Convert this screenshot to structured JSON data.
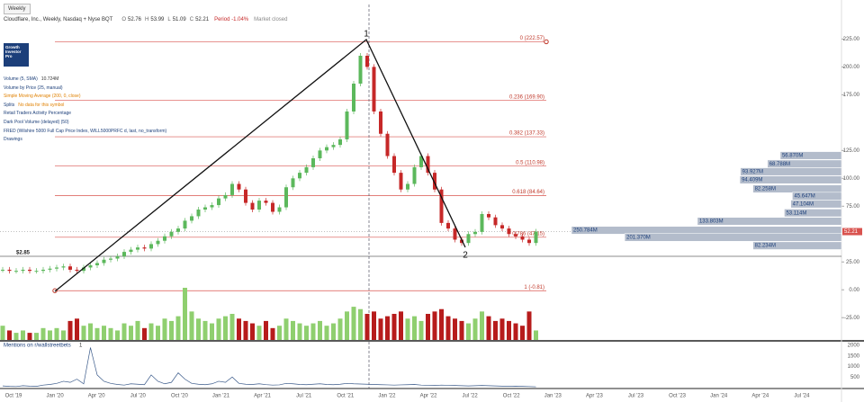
{
  "header": {
    "title": "Cloudflare, Inc., Weekly, Nasdaq + Nyse BQT",
    "ohlc": [
      {
        "label": "O",
        "value": "52.76"
      },
      {
        "label": "H",
        "value": "53.99"
      },
      {
        "label": "L",
        "value": "51.09"
      },
      {
        "label": "C",
        "value": "52.21"
      }
    ],
    "period": "Period -1.04%",
    "status": "Market closed"
  },
  "toolbar": {
    "interval": "Weekly"
  },
  "logo": [
    "Growth",
    "Investor",
    "Pro"
  ],
  "indicators": [
    {
      "name": "Volume (5, SMA)",
      "value": "10.724M"
    },
    {
      "name": "Volume by Price (25, manual)",
      "value": null
    },
    {
      "name": "Simple Moving Average (200, 0, close)",
      "value": null
    },
    {
      "name": "Splits",
      "value": "No data for this symbol"
    },
    {
      "name": "Retail Traders Activity Percentage",
      "value": null
    },
    {
      "name": "Dark Pool Volume (delayed) (50)",
      "value": null
    },
    {
      "name": "FRED (Wilshire 5000 Full Cap Price Index, WILL5000PRFC d, last, no_transform)",
      "value": null
    },
    {
      "name": "Drawings",
      "value": null
    }
  ],
  "price_axis": {
    "ylim": [
      -45,
      256
    ],
    "ticks": [
      {
        "value": 225,
        "label": "225.00"
      },
      {
        "value": 200,
        "label": "200.00"
      },
      {
        "value": 175,
        "label": "175.00"
      },
      {
        "value": 125,
        "label": "125.00"
      },
      {
        "value": 100,
        "label": "100.00"
      },
      {
        "value": 75,
        "label": "75.00"
      },
      {
        "value": 25,
        "label": "25.00"
      },
      {
        "value": 0,
        "label": "0.00"
      },
      {
        "value": -25,
        "label": "-25.00"
      }
    ],
    "current": {
      "value": 52.21,
      "label": "52.21"
    }
  },
  "fib": [
    {
      "value": 222.57,
      "label": "0 (222.57)"
    },
    {
      "value": 169.9,
      "label": "0.236 (169.90)"
    },
    {
      "value": 137.33,
      "label": "0.382 (137.33)"
    },
    {
      "value": 110.98,
      "label": "0.5 (110.98)"
    },
    {
      "value": 84.64,
      "label": "0.618 (84.64)"
    },
    {
      "value": 47.15,
      "label": "0.786 (47.15)"
    },
    {
      "value": -0.81,
      "label": "1 (-0.81)"
    }
  ],
  "x_axis": [
    "Oct '19",
    "Jan '20",
    "Apr '20",
    "Jul '20",
    "Oct '20",
    "Jan '21",
    "Apr '21",
    "Jul '21",
    "Oct '21",
    "Jan '22",
    "Apr '22",
    "Jul '22",
    "Oct '22",
    "Jan '23",
    "Apr '23",
    "Jul '23",
    "Oct '23",
    "Jan '24",
    "Apr '24",
    "Jul '24"
  ],
  "series": {
    "closes": [
      18,
      17,
      17,
      18,
      17,
      17,
      18,
      19,
      20,
      21,
      18,
      17,
      20,
      22,
      24,
      27,
      28,
      30,
      34,
      36,
      38,
      37,
      41,
      44,
      48,
      52,
      55,
      62,
      66,
      72,
      74,
      76,
      82,
      85,
      95,
      90,
      78,
      72,
      80,
      78,
      70,
      74,
      92,
      100,
      105,
      110,
      118,
      125,
      128,
      130,
      135,
      160,
      185,
      210,
      200,
      160,
      140,
      120,
      105,
      90,
      95,
      110,
      120,
      105,
      90,
      60,
      55,
      45,
      42,
      50,
      52,
      68,
      65,
      58,
      55,
      50,
      48,
      45,
      42,
      52.21
    ],
    "volumes": [
      6,
      4,
      3,
      4,
      3,
      3,
      5,
      4,
      5,
      4,
      8,
      9,
      6,
      7,
      5,
      6,
      5,
      4,
      7,
      6,
      8,
      5,
      7,
      6,
      9,
      8,
      10,
      22,
      12,
      9,
      8,
      7,
      9,
      10,
      11,
      9,
      8,
      7,
      6,
      8,
      5,
      6,
      9,
      8,
      7,
      6,
      7,
      8,
      6,
      7,
      9,
      12,
      14,
      13,
      11,
      12,
      9,
      10,
      11,
      12,
      9,
      10,
      8,
      11,
      12,
      13,
      10,
      9,
      8,
      7,
      9,
      12,
      10,
      8,
      9,
      8,
      7,
      6,
      12,
      4
    ],
    "mentions": [
      80,
      60,
      50,
      90,
      70,
      60,
      120,
      150,
      200,
      300,
      250,
      400,
      180,
      1900,
      600,
      300,
      200,
      150,
      120,
      180,
      160,
      140,
      600,
      300,
      180,
      250,
      700,
      400,
      200,
      160,
      140,
      180,
      300,
      250,
      500,
      200,
      160,
      150,
      180,
      140,
      120,
      130,
      200,
      180,
      150,
      140,
      160,
      180,
      150,
      140,
      160,
      200,
      180,
      170,
      160,
      150,
      140,
      130,
      120,
      130,
      140,
      150,
      120,
      110,
      100,
      120,
      110,
      100,
      90,
      80,
      90,
      100,
      90,
      80,
      70,
      60,
      70,
      60,
      50,
      40
    ]
  },
  "volume_profile": [
    {
      "price": 120.5,
      "volume": 56.87,
      "label": "56.870M"
    },
    {
      "price": 113,
      "volume": 68.788,
      "label": "68.788M"
    },
    {
      "price": 106,
      "volume": 93.927,
      "label": "93.927M"
    },
    {
      "price": 98.7,
      "volume": 94.409,
      "label": "94.409M"
    },
    {
      "price": 90.6,
      "volume": 82.258,
      "label": "82.258M"
    },
    {
      "price": 84,
      "volume": 45.647,
      "label": "45.647M"
    },
    {
      "price": 77,
      "volume": 47.104,
      "label": "47.104M"
    },
    {
      "price": 69,
      "volume": 53.114,
      "label": "53.114M"
    },
    {
      "price": 61.5,
      "volume": 133.803,
      "label": "133.803M"
    },
    {
      "price": 53.4,
      "volume": 250.784,
      "label": "250.784M"
    },
    {
      "price": 47,
      "volume": 201.37,
      "label": "201.370M"
    },
    {
      "price": 39.6,
      "volume": 82.234,
      "label": "82.234M"
    }
  ],
  "mentions_pane": {
    "title": "Mentions on r/wallstreetbets",
    "count": "1",
    "ylim": [
      0,
      2130
    ],
    "ticks": [
      500,
      1000,
      1500,
      2000
    ]
  },
  "annotations": {
    "peak": "1",
    "trough": "2",
    "level": "$2.85"
  }
}
